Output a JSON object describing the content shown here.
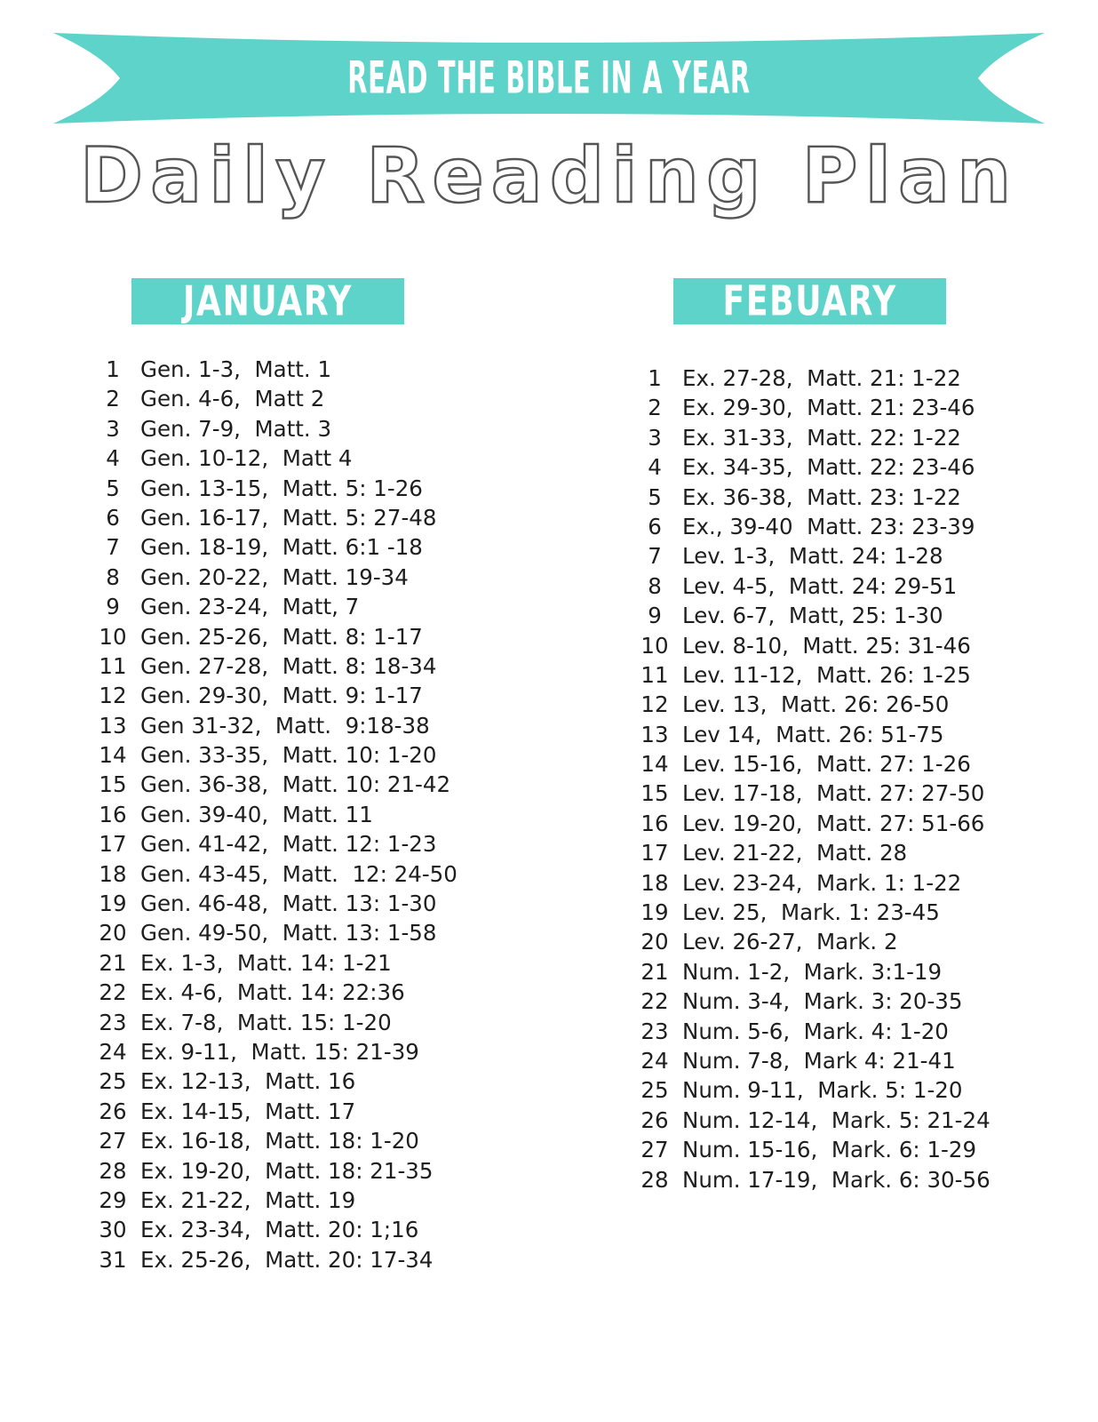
{
  "banner": {
    "text": "READ THE BIBLE IN A YEAR"
  },
  "title": "Daily Reading Plan",
  "colors": {
    "teal": "#5ed3ca",
    "title_outline": "#555555",
    "body_text": "#1e1e1e"
  },
  "months": [
    {
      "name": "JANUARY",
      "entries": [
        {
          "day": "1",
          "reading": "Gen. 1-3,  Matt. 1"
        },
        {
          "day": "2",
          "reading": "Gen. 4-6,  Matt 2"
        },
        {
          "day": "3",
          "reading": "Gen. 7-9,  Matt. 3"
        },
        {
          "day": "4",
          "reading": "Gen. 10-12,  Matt 4"
        },
        {
          "day": "5",
          "reading": "Gen. 13-15,  Matt. 5: 1-26"
        },
        {
          "day": "6",
          "reading": "Gen. 16-17,  Matt. 5: 27-48"
        },
        {
          "day": "7",
          "reading": "Gen. 18-19,  Matt. 6:1 -18"
        },
        {
          "day": "8",
          "reading": "Gen. 20-22,  Matt. 19-34"
        },
        {
          "day": "9",
          "reading": "Gen. 23-24,  Matt, 7"
        },
        {
          "day": "10",
          "reading": "Gen. 25-26,  Matt. 8: 1-17"
        },
        {
          "day": "11",
          "reading": "Gen. 27-28,  Matt. 8: 18-34"
        },
        {
          "day": "12",
          "reading": "Gen. 29-30,  Matt. 9: 1-17"
        },
        {
          "day": "13",
          "reading": "Gen 31-32,  Matt.  9:18-38"
        },
        {
          "day": "14",
          "reading": "Gen. 33-35,  Matt. 10: 1-20"
        },
        {
          "day": "15",
          "reading": "Gen. 36-38,  Matt. 10: 21-42"
        },
        {
          "day": "16",
          "reading": "Gen. 39-40,  Matt. 11"
        },
        {
          "day": "17",
          "reading": "Gen. 41-42,  Matt. 12: 1-23"
        },
        {
          "day": "18",
          "reading": "Gen. 43-45,  Matt.  12: 24-50"
        },
        {
          "day": "19",
          "reading": "Gen. 46-48,  Matt. 13: 1-30"
        },
        {
          "day": "20",
          "reading": "Gen. 49-50,  Matt. 13: 1-58"
        },
        {
          "day": "21",
          "reading": "Ex. 1-3,  Matt. 14: 1-21"
        },
        {
          "day": "22",
          "reading": "Ex. 4-6,  Matt. 14: 22:36"
        },
        {
          "day": "23",
          "reading": "Ex. 7-8,  Matt. 15: 1-20"
        },
        {
          "day": "24",
          "reading": "Ex. 9-11,  Matt. 15: 21-39"
        },
        {
          "day": "25",
          "reading": "Ex. 12-13,  Matt. 16"
        },
        {
          "day": "26",
          "reading": "Ex. 14-15,  Matt. 17"
        },
        {
          "day": "27",
          "reading": "Ex. 16-18,  Matt. 18: 1-20"
        },
        {
          "day": "28",
          "reading": "Ex. 19-20,  Matt. 18: 21-35"
        },
        {
          "day": "29",
          "reading": "Ex. 21-22,  Matt. 19"
        },
        {
          "day": "30",
          "reading": "Ex. 23-34,  Matt. 20: 1;16"
        },
        {
          "day": "31",
          "reading": "Ex. 25-26,  Matt. 20: 17-34"
        }
      ]
    },
    {
      "name": "FEBUARY",
      "entries": [
        {
          "day": "1",
          "reading": "Ex. 27-28,  Matt. 21: 1-22"
        },
        {
          "day": "2",
          "reading": "Ex. 29-30,  Matt. 21: 23-46"
        },
        {
          "day": "3",
          "reading": "Ex. 31-33,  Matt. 22: 1-22"
        },
        {
          "day": "4",
          "reading": "Ex. 34-35,  Matt. 22: 23-46"
        },
        {
          "day": "5",
          "reading": "Ex. 36-38,  Matt. 23: 1-22"
        },
        {
          "day": "6",
          "reading": "Ex., 39-40  Matt. 23: 23-39"
        },
        {
          "day": "7",
          "reading": "Lev. 1-3,  Matt. 24: 1-28"
        },
        {
          "day": "8",
          "reading": "Lev. 4-5,  Matt. 24: 29-51"
        },
        {
          "day": "9",
          "reading": "Lev. 6-7,  Matt, 25: 1-30"
        },
        {
          "day": "10",
          "reading": "Lev. 8-10,  Matt. 25: 31-46"
        },
        {
          "day": "11",
          "reading": "Lev. 11-12,  Matt. 26: 1-25"
        },
        {
          "day": "12",
          "reading": "Lev. 13,  Matt. 26: 26-50"
        },
        {
          "day": "13",
          "reading": "Lev 14,  Matt. 26: 51-75"
        },
        {
          "day": "14",
          "reading": "Lev. 15-16,  Matt. 27: 1-26"
        },
        {
          "day": "15",
          "reading": "Lev. 17-18,  Matt. 27: 27-50"
        },
        {
          "day": "16",
          "reading": "Lev. 19-20,  Matt. 27: 51-66"
        },
        {
          "day": "17",
          "reading": "Lev. 21-22,  Matt. 28"
        },
        {
          "day": "18",
          "reading": "Lev. 23-24,  Mark. 1: 1-22"
        },
        {
          "day": "19",
          "reading": "Lev. 25,  Mark. 1: 23-45"
        },
        {
          "day": "20",
          "reading": "Lev. 26-27,  Mark. 2"
        },
        {
          "day": "21",
          "reading": "Num. 1-2,  Mark. 3:1-19"
        },
        {
          "day": "22",
          "reading": "Num. 3-4,  Mark. 3: 20-35"
        },
        {
          "day": "23",
          "reading": "Num. 5-6,  Mark. 4: 1-20"
        },
        {
          "day": "24",
          "reading": "Num. 7-8,  Mark 4: 21-41"
        },
        {
          "day": "25",
          "reading": "Num. 9-11,  Mark. 5: 1-20"
        },
        {
          "day": "26",
          "reading": "Num. 12-14,  Mark. 5: 21-24"
        },
        {
          "day": "27",
          "reading": "Num. 15-16,  Mark. 6: 1-29"
        },
        {
          "day": "28",
          "reading": "Num. 17-19,  Mark. 6: 30-56"
        }
      ]
    }
  ]
}
